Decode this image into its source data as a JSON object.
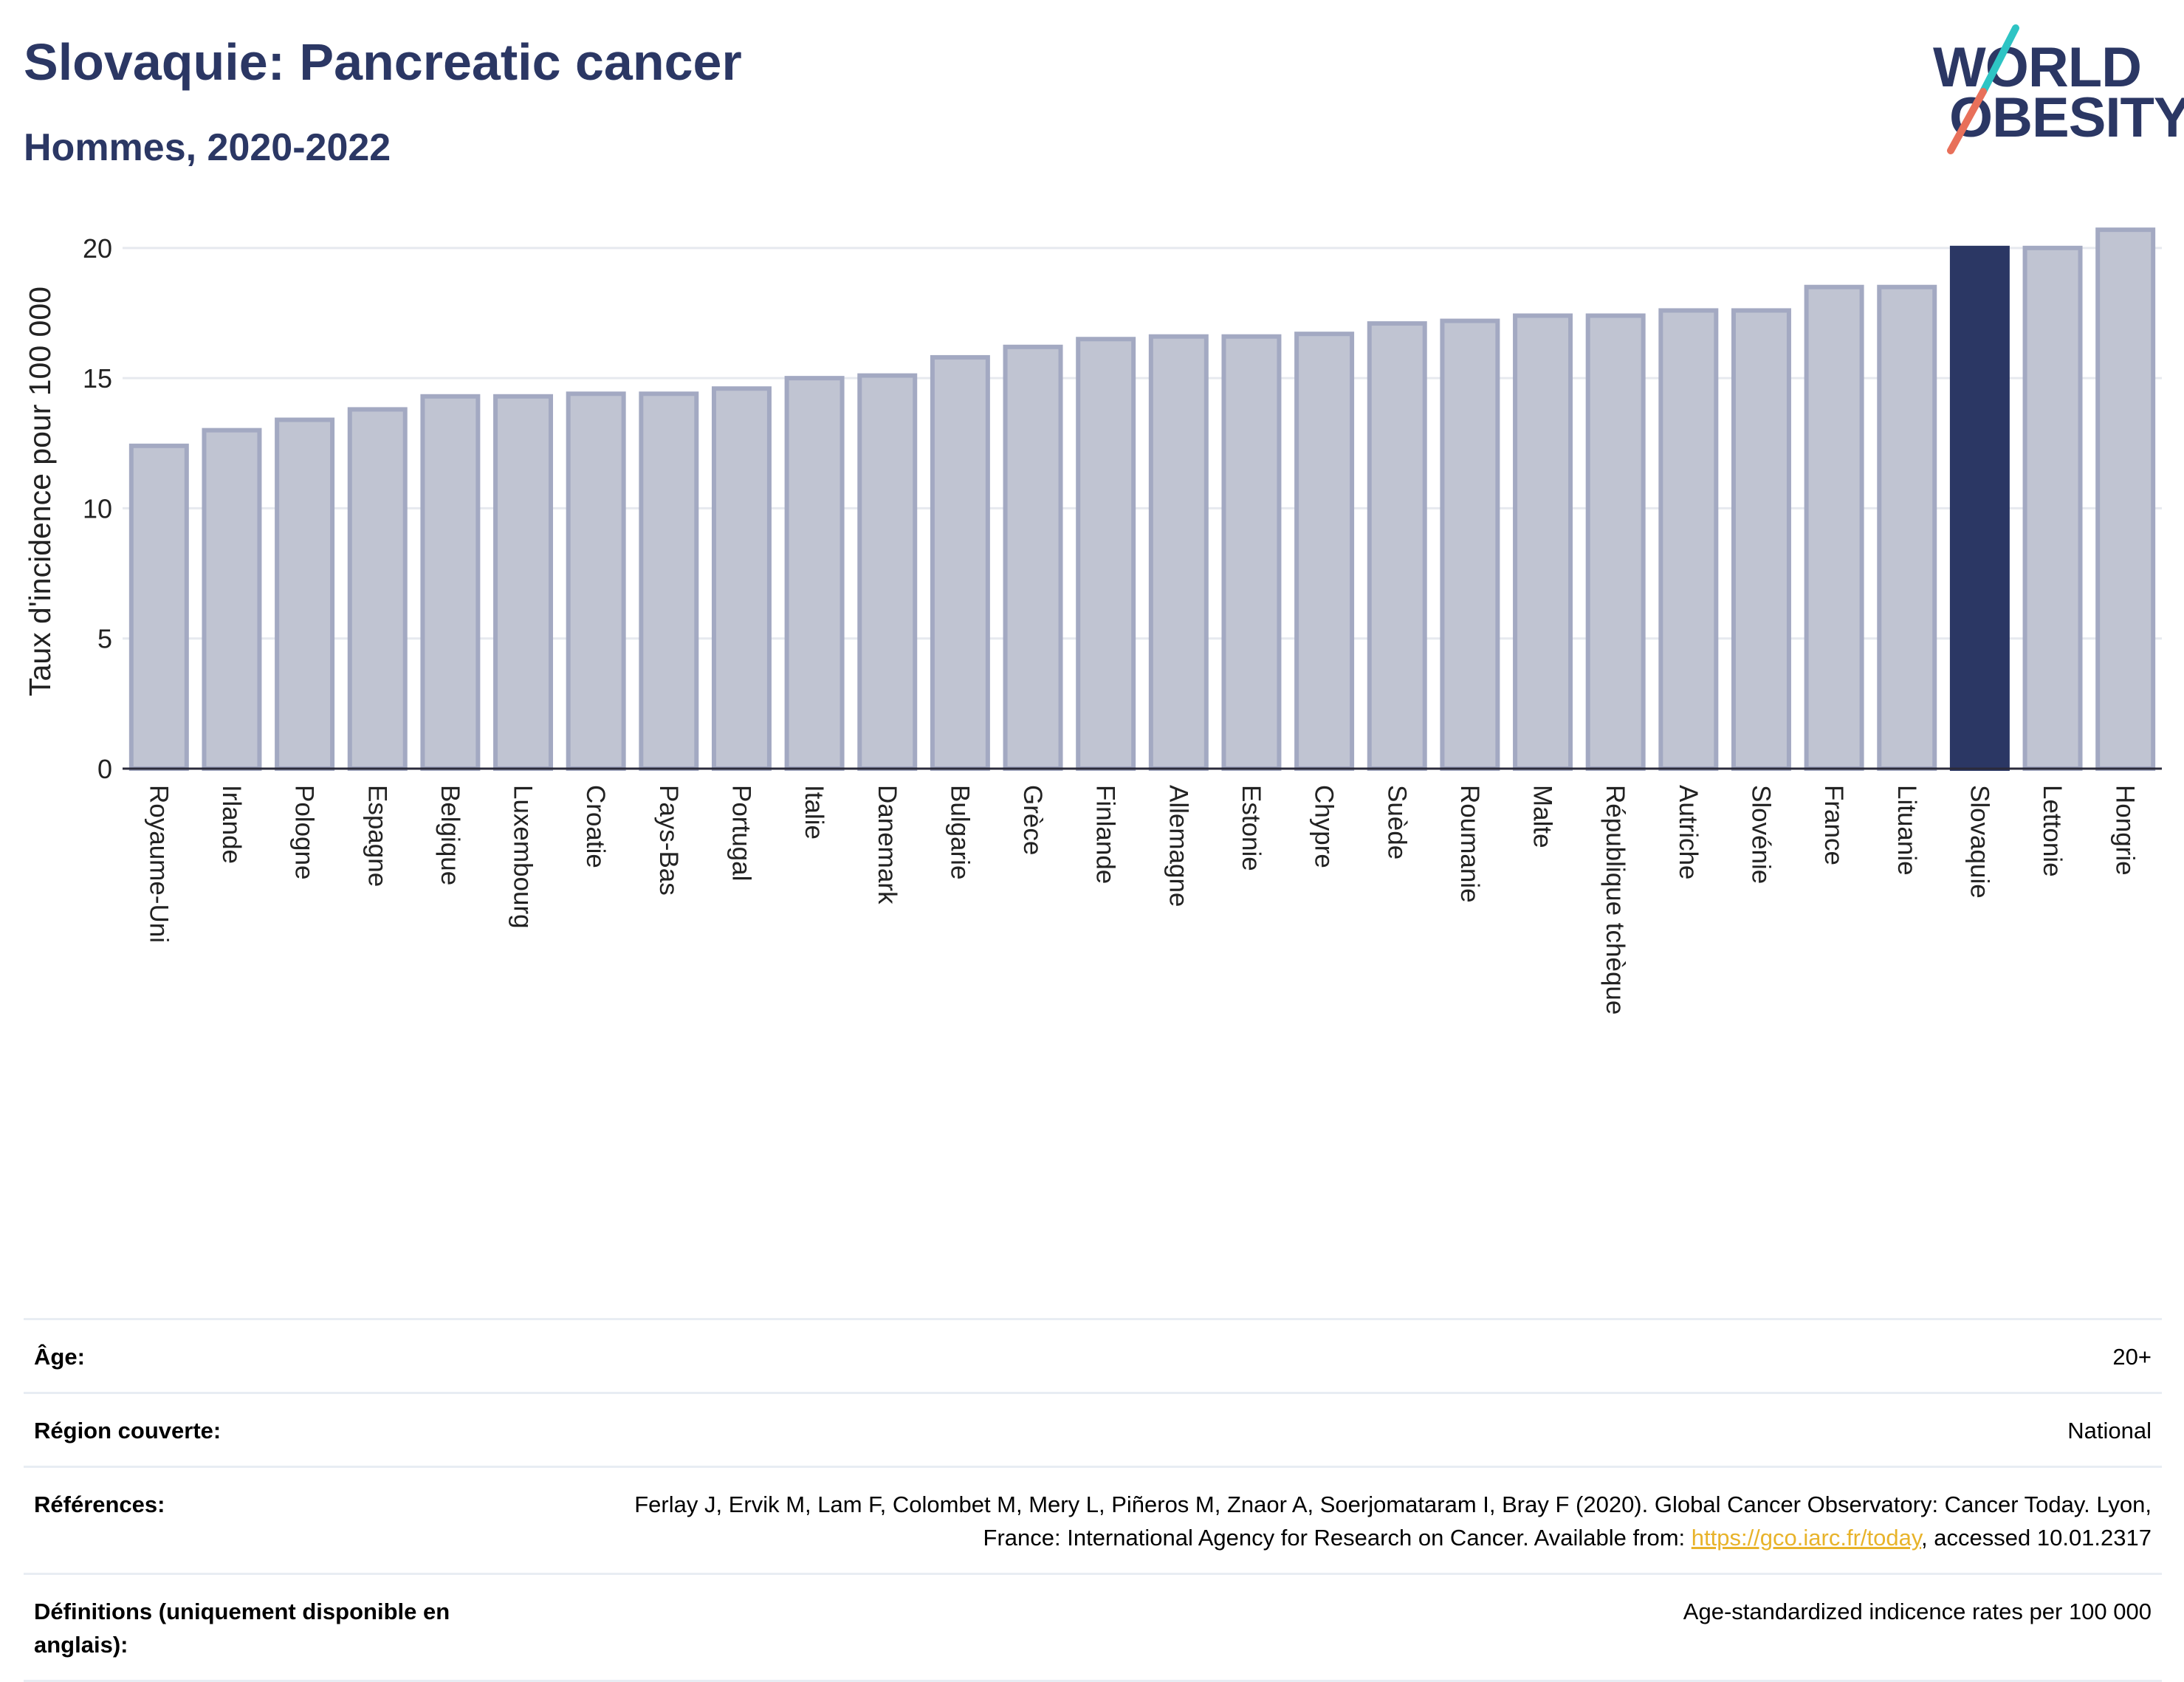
{
  "header": {
    "title": "Slovaquie: Pancreatic cancer",
    "subtitle": "Hommes, 2020-2022"
  },
  "logo": {
    "line1": "WORLD",
    "line2": "OBESITY",
    "slash_colors": [
      "#2ec4c4",
      "#e8705a"
    ]
  },
  "colors": {
    "bar_default": "#c0c4d2",
    "bar_default_stroke": "#a3a9c2",
    "bar_highlight": "#2b3764",
    "title": "#2b3764",
    "link": "#e8b32a"
  },
  "chart_data": {
    "type": "bar",
    "title": "Slovaquie: Pancreatic cancer",
    "subtitle": "Hommes, 2020-2022",
    "ylabel": "Taux d'incidence pour 100 000",
    "xlabel": "",
    "ylim": [
      0,
      21.3
    ],
    "yticks": [
      0,
      5,
      10,
      15,
      20
    ],
    "grid": true,
    "highlight": "Slovaquie",
    "categories": [
      "Royaume-Uni",
      "Irlande",
      "Pologne",
      "Espagne",
      "Belgique",
      "Luxembourg",
      "Croatie",
      "Pays-Bas",
      "Portugal",
      "Italie",
      "Danemark",
      "Bulgarie",
      "Grèce",
      "Finlande",
      "Allemagne",
      "Estonie",
      "Chypre",
      "Suède",
      "Roumanie",
      "Malte",
      "République tchèque",
      "Autriche",
      "Slovénie",
      "France",
      "Lituanie",
      "Slovaquie",
      "Lettonie",
      "Hongrie"
    ],
    "values": [
      12.4,
      13.0,
      13.4,
      13.8,
      14.3,
      14.3,
      14.4,
      14.4,
      14.6,
      15.0,
      15.1,
      15.8,
      16.2,
      16.5,
      16.6,
      16.6,
      16.7,
      17.1,
      17.2,
      17.4,
      17.4,
      17.6,
      17.6,
      18.5,
      18.5,
      20.0,
      20.0,
      20.7
    ]
  },
  "meta": [
    {
      "label": "Âge:",
      "value": "20+"
    },
    {
      "label": "Région couverte:",
      "value": "National"
    },
    {
      "label": "Références:",
      "value_before": "Ferlay J, Ervik M, Lam F, Colombet M, Mery L, Piñeros M, Znaor A, Soerjomataram I, Bray F (2020). Global Cancer Observatory: Cancer Today. Lyon, France: International Agency for Research on Cancer. Available from: ",
      "link": "https://gco.iarc.fr/today",
      "value_after": ", accessed 10.01.2317"
    },
    {
      "label": "Définitions (uniquement disponible en anglais):",
      "value": "Age-standardized indicence rates per 100 000"
    }
  ]
}
